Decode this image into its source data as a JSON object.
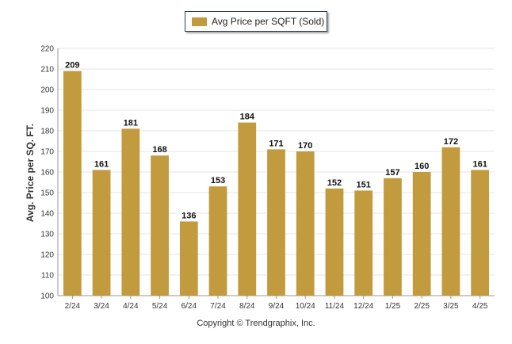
{
  "chart_data": {
    "type": "bar",
    "categories": [
      "2/24",
      "3/24",
      "4/24",
      "5/24",
      "6/24",
      "7/24",
      "8/24",
      "9/24",
      "10/24",
      "11/24",
      "12/24",
      "1/25",
      "2/25",
      "3/25",
      "4/25"
    ],
    "series": [
      {
        "name": "Avg Price per SQFT (Sold)",
        "values": [
          209,
          161,
          181,
          168,
          136,
          153,
          184,
          171,
          170,
          152,
          151,
          157,
          160,
          172,
          161
        ]
      }
    ],
    "ylabel": "Avg. Price per SQ. FT.",
    "xlabel": "",
    "ylim": [
      100,
      220
    ],
    "yticks": [
      100,
      110,
      120,
      130,
      140,
      150,
      160,
      170,
      180,
      190,
      200,
      210,
      220
    ],
    "grid": true,
    "legend_position": "top-center",
    "data_labels": true,
    "colors": {
      "bar": "#C29B3F",
      "grid": "#e6e6e6",
      "axis": "#999999"
    }
  },
  "footer": {
    "copyright": "Copyright © Trendgraphix, Inc."
  }
}
